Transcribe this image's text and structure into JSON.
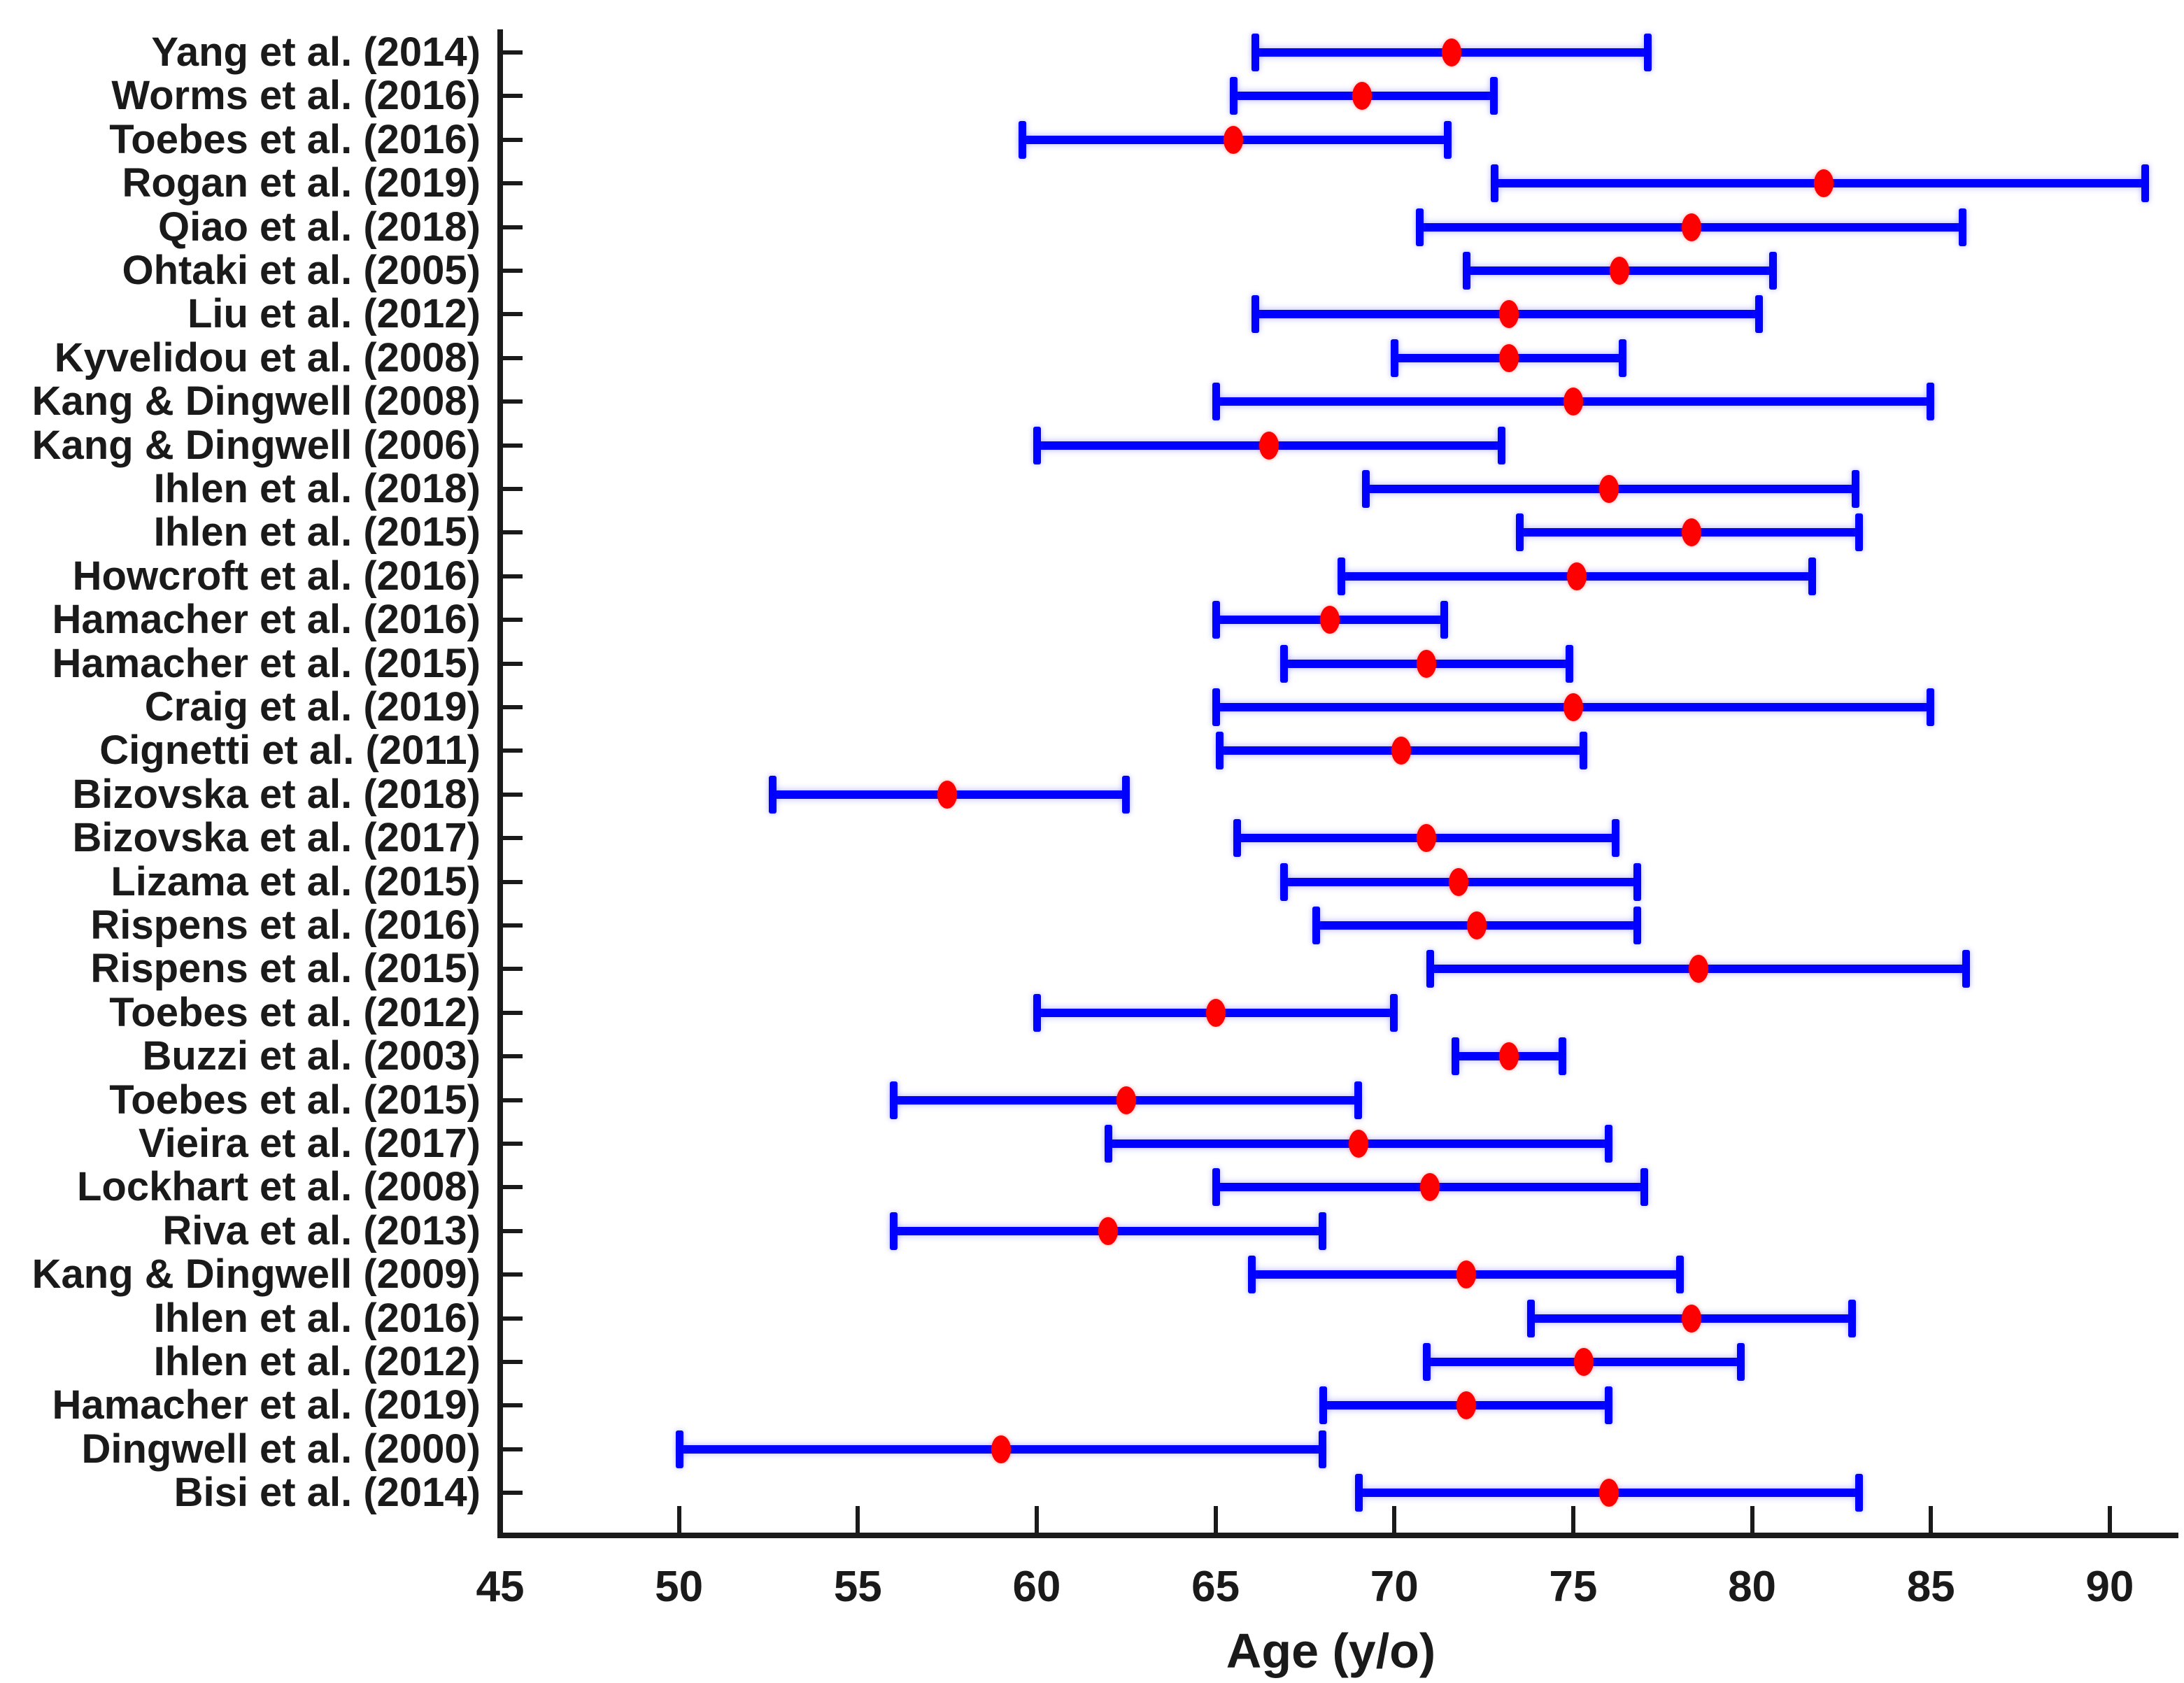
{
  "figure": {
    "xlabel": "Age (y/o)",
    "background": "#ffffff"
  },
  "colors": {
    "bar_blue": "#0000ff",
    "marker_red": "#ff0000",
    "axis_black": "#1a1a1a"
  },
  "chart_data": {
    "type": "errorbar",
    "orientation": "horizontal",
    "title": "",
    "xlabel": "Age (y/o)",
    "ylabel": "",
    "xlim": [
      45,
      92
    ],
    "x_ticks": [
      45,
      50,
      55,
      60,
      65,
      70,
      75,
      80,
      85,
      90
    ],
    "grid": false,
    "legend": "none",
    "marker_meaning": "red dot = mean age (y/o)",
    "bar_meaning": "blue capped line = age range (mean - SD to mean + SD)",
    "studies": [
      {
        "label": "Yang et al. (2014)",
        "low": 66.1,
        "mean": 71.6,
        "high": 77.1
      },
      {
        "label": "Worms et al. (2016)",
        "low": 65.5,
        "mean": 69.1,
        "high": 72.8
      },
      {
        "label": "Toebes et al. (2016)",
        "low": 59.6,
        "mean": 65.5,
        "high": 71.5
      },
      {
        "label": "Rogan et al. (2019)",
        "low": 72.8,
        "mean": 82.0,
        "high": 91.0
      },
      {
        "label": "Qiao et al. (2018)",
        "low": 70.7,
        "mean": 78.3,
        "high": 85.9
      },
      {
        "label": "Ohtaki et al. (2005)",
        "low": 72.0,
        "mean": 76.3,
        "high": 80.6
      },
      {
        "label": "Liu et al. (2012)",
        "low": 66.1,
        "mean": 73.2,
        "high": 80.2
      },
      {
        "label": "Kyvelidou et al. (2008)",
        "low": 70.0,
        "mean": 73.2,
        "high": 76.4
      },
      {
        "label": "Kang & Dingwell (2008)",
        "low": 65.0,
        "mean": 75.0,
        "high": 85.0
      },
      {
        "label": "Kang & Dingwell (2006)",
        "low": 60.0,
        "mean": 66.5,
        "high": 73.0
      },
      {
        "label": "Ihlen et al. (2018)",
        "low": 69.2,
        "mean": 76.0,
        "high": 82.9
      },
      {
        "label": "Ihlen et al. (2015)",
        "low": 73.5,
        "mean": 78.3,
        "high": 83.0
      },
      {
        "label": "Howcroft et al. (2016)",
        "low": 68.5,
        "mean": 75.1,
        "high": 81.7
      },
      {
        "label": "Hamacher et al. (2016)",
        "low": 65.0,
        "mean": 68.2,
        "high": 71.4
      },
      {
        "label": "Hamacher et al. (2015)",
        "low": 66.9,
        "mean": 70.9,
        "high": 74.9
      },
      {
        "label": "Craig et al. (2019)",
        "low": 65.0,
        "mean": 75.0,
        "high": 85.0
      },
      {
        "label": "Cignetti et al. (2011)",
        "low": 65.1,
        "mean": 70.2,
        "high": 75.3
      },
      {
        "label": "Bizovska et al. (2018)",
        "low": 52.6,
        "mean": 57.5,
        "high": 62.5
      },
      {
        "label": "Bizovska et al. (2017)",
        "low": 65.6,
        "mean": 70.9,
        "high": 76.2
      },
      {
        "label": "Lizama et al. (2015)",
        "low": 66.9,
        "mean": 71.8,
        "high": 76.8
      },
      {
        "label": "Rispens et al. (2016)",
        "low": 67.8,
        "mean": 72.3,
        "high": 76.8
      },
      {
        "label": "Rispens et al. (2015)",
        "low": 71.0,
        "mean": 78.5,
        "high": 86.0
      },
      {
        "label": "Toebes et al. (2012)",
        "low": 60.0,
        "mean": 65.0,
        "high": 70.0
      },
      {
        "label": "Buzzi et al. (2003)",
        "low": 71.7,
        "mean": 73.2,
        "high": 74.7
      },
      {
        "label": "Toebes et al. (2015)",
        "low": 56.0,
        "mean": 62.5,
        "high": 69.0
      },
      {
        "label": "Vieira et al. (2017)",
        "low": 62.0,
        "mean": 69.0,
        "high": 76.0
      },
      {
        "label": "Lockhart et al. (2008)",
        "low": 65.0,
        "mean": 71.0,
        "high": 77.0
      },
      {
        "label": "Riva et al. (2013)",
        "low": 56.0,
        "mean": 62.0,
        "high": 68.0
      },
      {
        "label": "Kang & Dingwell (2009)",
        "low": 66.0,
        "mean": 72.0,
        "high": 78.0
      },
      {
        "label": "Ihlen et al. (2016)",
        "low": 73.8,
        "mean": 78.3,
        "high": 82.8
      },
      {
        "label": "Ihlen et al. (2012)",
        "low": 70.9,
        "mean": 75.3,
        "high": 79.7
      },
      {
        "label": "Hamacher et al. (2019)",
        "low": 68.0,
        "mean": 72.0,
        "high": 76.0
      },
      {
        "label": "Dingwell et al. (2000)",
        "low": 50.0,
        "mean": 59.0,
        "high": 68.0
      },
      {
        "label": "Bisi et al. (2014)",
        "low": 69.0,
        "mean": 76.0,
        "high": 83.0
      }
    ]
  }
}
